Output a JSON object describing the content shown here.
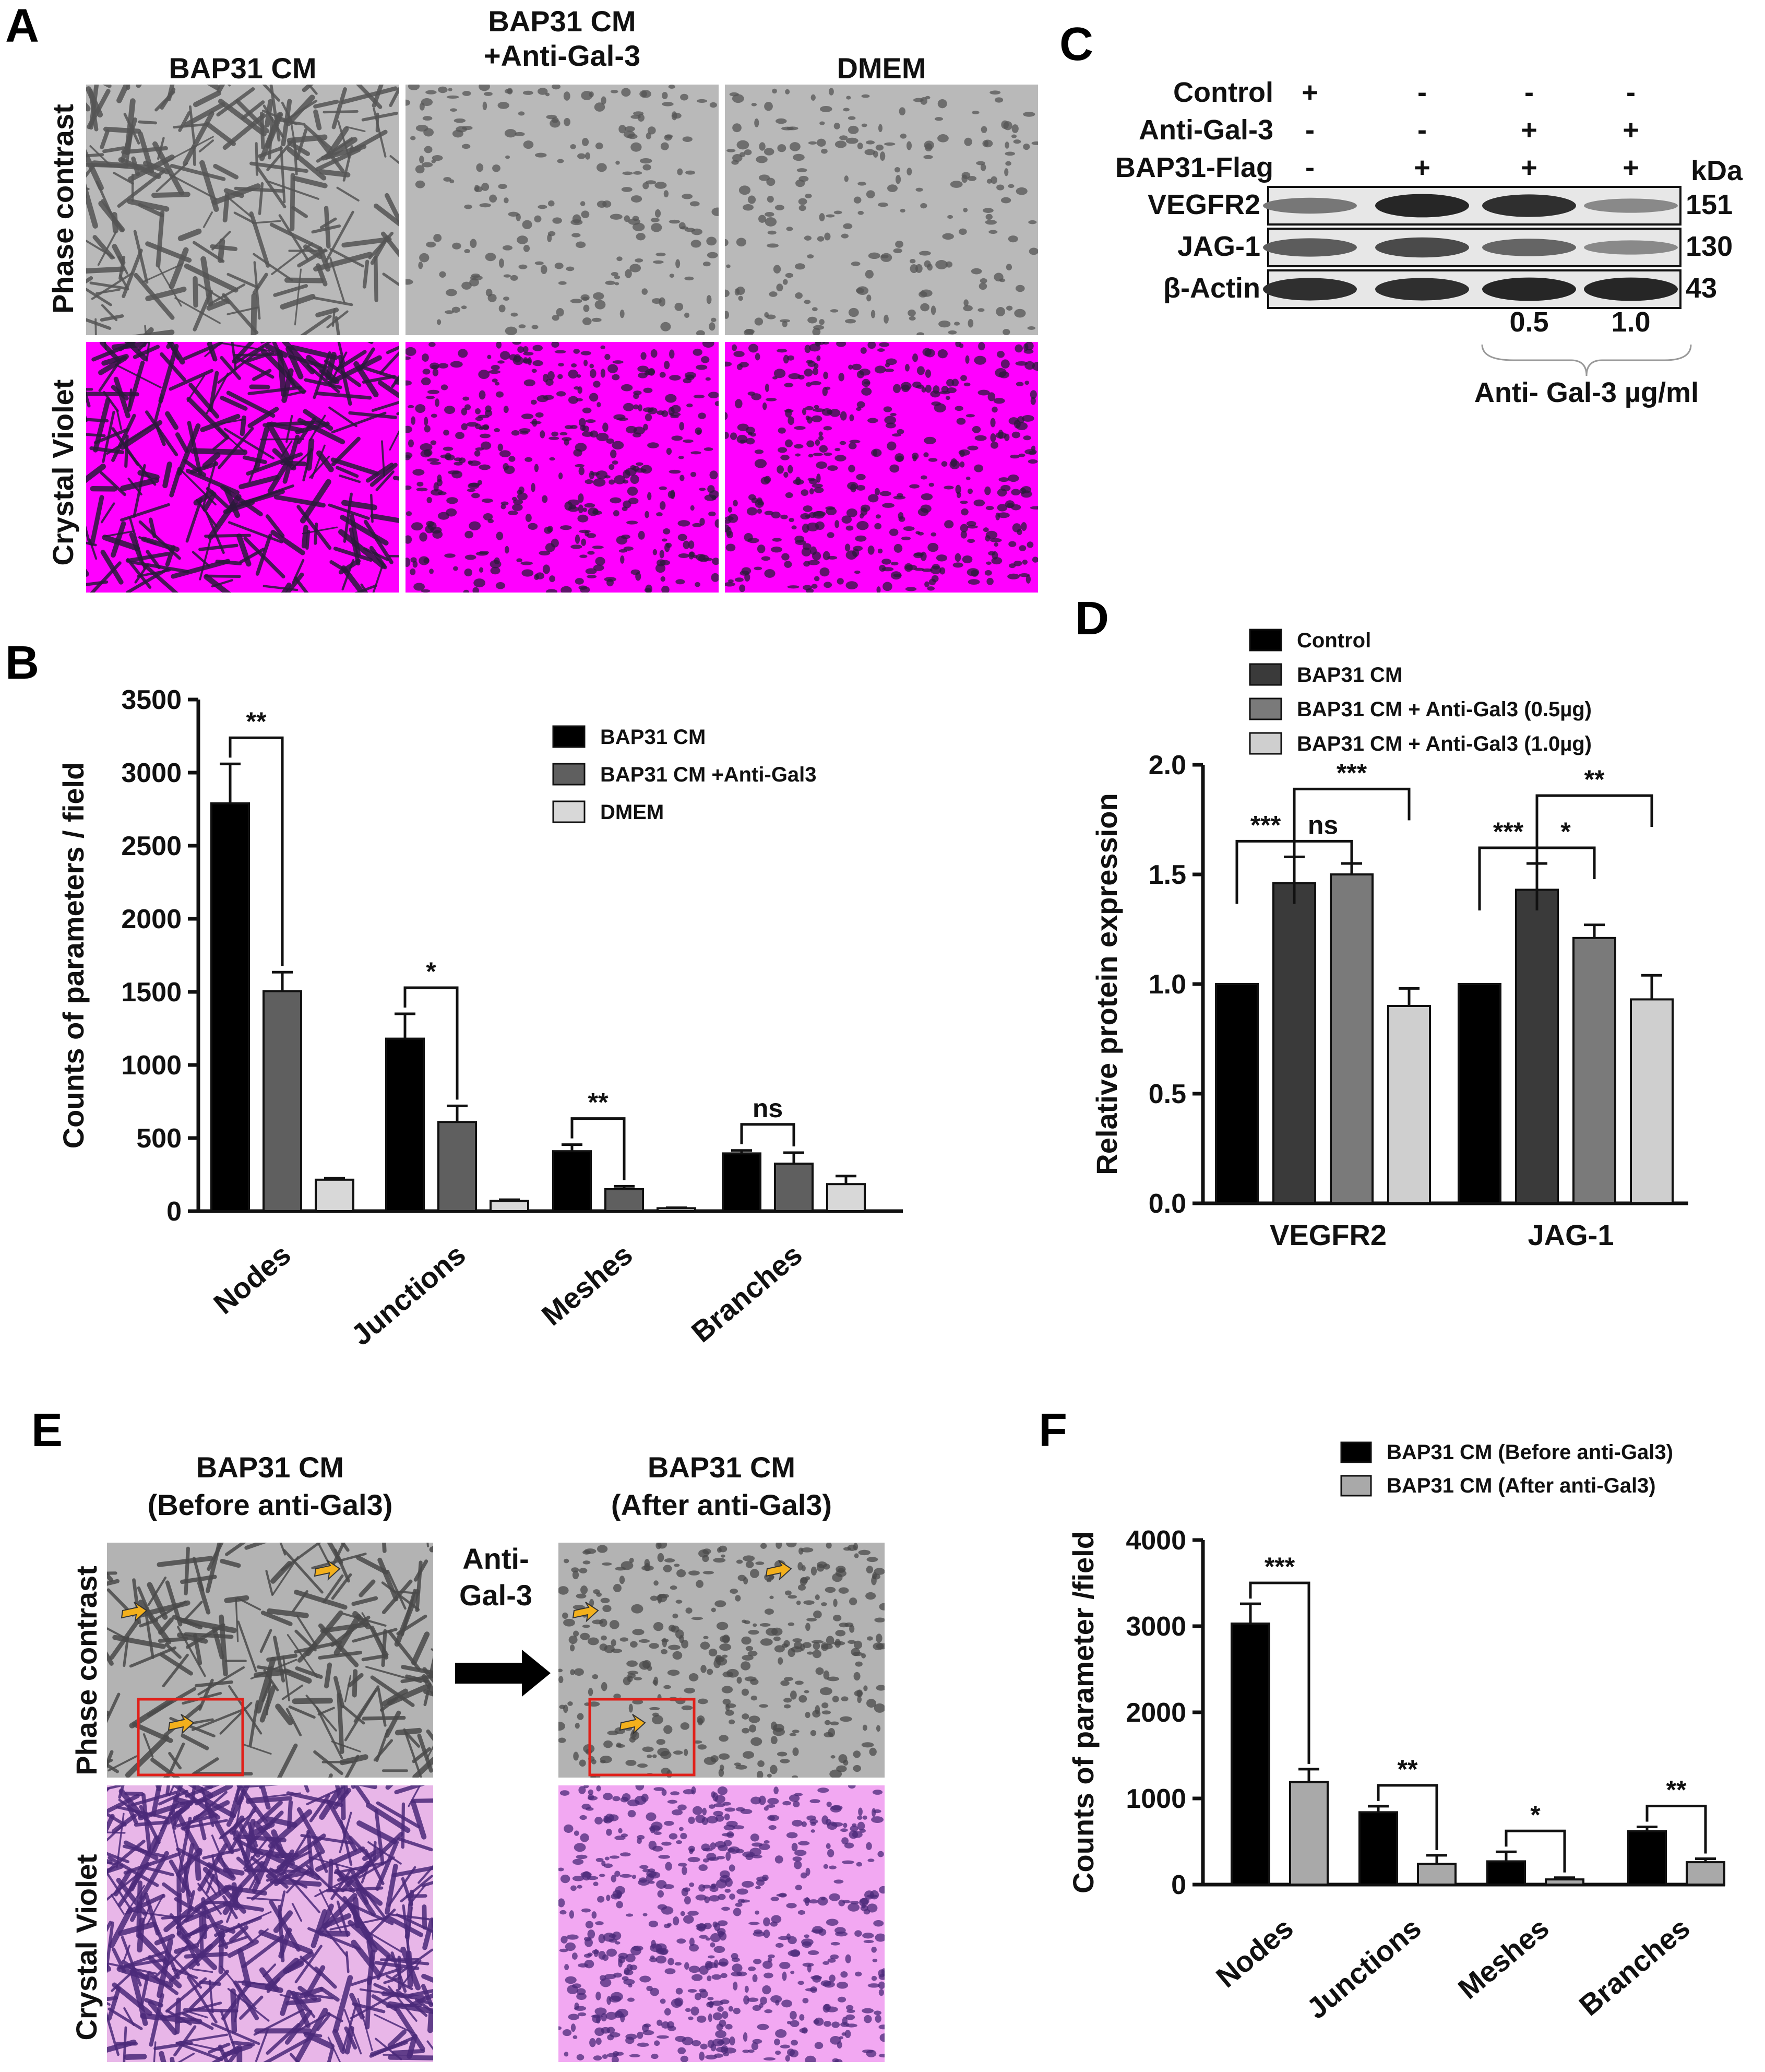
{
  "panels": {
    "A": "A",
    "B": "B",
    "C": "C",
    "D": "D",
    "E": "E",
    "F": "F"
  },
  "panel_a": {
    "column_headers": [
      "BAP31 CM",
      "BAP31 CM\n+Anti-Gal-3",
      "DMEM"
    ],
    "row_labels": [
      "Phase contrast",
      "Crystal Violet"
    ],
    "colors": {
      "phase": "#b9b9b9",
      "crystal": "#ff00ff",
      "network": "#2a1a3a"
    }
  },
  "panel_c": {
    "rows": [
      {
        "label": "Control",
        "marks": [
          "+",
          "-",
          "-",
          "-"
        ]
      },
      {
        "label": "Anti-Gal-3",
        "marks": [
          "-",
          "-",
          "+",
          "+"
        ]
      },
      {
        "label": "BAP31-Flag",
        "marks": [
          "-",
          "+",
          "+",
          "+"
        ]
      }
    ],
    "kda_label": "kDa",
    "bands": [
      {
        "label": "VEGFR2",
        "kda": "151",
        "intensity": [
          0.45,
          0.9,
          0.85,
          0.35
        ]
      },
      {
        "label": "JAG-1",
        "kda": "130",
        "intensity": [
          0.6,
          0.7,
          0.55,
          0.35
        ]
      },
      {
        "label": "β-Actin",
        "kda": "43",
        "intensity": [
          0.85,
          0.85,
          0.9,
          0.9
        ]
      }
    ],
    "doses": [
      "0.5",
      "1.0"
    ],
    "dose_caption": "Anti- Gal-3 µg/ml"
  },
  "panel_e": {
    "headers": [
      "BAP31 CM\n(Before anti-Gal3)",
      "BAP31 CM\n(After anti-Gal3)"
    ],
    "row_labels": [
      "Phase contrast",
      "Crystal Violet"
    ],
    "arrow_label": "Anti-\nGal-3"
  },
  "chart_data": [
    {
      "id": "B",
      "type": "bar",
      "ylabel": "Counts of parameters / field",
      "ylim": [
        0,
        3500
      ],
      "yticks": [
        0,
        500,
        1000,
        1500,
        2000,
        2500,
        3000,
        3500
      ],
      "categories": [
        "Nodes",
        "Junctions",
        "Meshes",
        "Branches"
      ],
      "series": [
        {
          "name": "BAP31 CM",
          "color": "#000000",
          "values": [
            2790,
            1180,
            410,
            395
          ],
          "errors": [
            270,
            170,
            45,
            20
          ]
        },
        {
          "name": "BAP31 CM +Anti-Gal3",
          "color": "#5f5f5f",
          "values": [
            1505,
            610,
            150,
            325
          ],
          "errors": [
            130,
            110,
            20,
            75
          ]
        },
        {
          "name": "DMEM",
          "color": "#d8d8d8",
          "values": [
            215,
            70,
            20,
            185
          ],
          "errors": [
            10,
            8,
            3,
            55
          ]
        }
      ],
      "significance": [
        {
          "category": 0,
          "label": "**"
        },
        {
          "category": 1,
          "label": "*"
        },
        {
          "category": 2,
          "label": "**"
        },
        {
          "category": 3,
          "label": "ns"
        }
      ]
    },
    {
      "id": "D",
      "type": "bar",
      "ylabel": "Relative  protein expression",
      "ylim": [
        0,
        2.0
      ],
      "yticks": [
        "0.0",
        "0.5",
        "1.0",
        "1.5",
        "2.0"
      ],
      "categories": [
        "VEGFR2",
        "JAG-1"
      ],
      "series": [
        {
          "name": "Control",
          "color": "#000000",
          "values": [
            1.0,
            1.0
          ],
          "errors": [
            0,
            0
          ]
        },
        {
          "name": "BAP31 CM",
          "color": "#3a3a3a",
          "values": [
            1.46,
            1.43
          ],
          "errors": [
            0.12,
            0.12
          ]
        },
        {
          "name": "BAP31 CM + Anti-Gal3 (0.5µg)",
          "color": "#7a7a7a",
          "values": [
            1.5,
            1.21
          ],
          "errors": [
            0.05,
            0.06
          ]
        },
        {
          "name": "BAP31 CM + Anti-Gal3 (1.0µg)",
          "color": "#cfcfcf",
          "values": [
            0.9,
            0.93
          ],
          "errors": [
            0.08,
            0.11
          ]
        }
      ],
      "significance": [
        {
          "category": 0,
          "from": 0,
          "to": 1,
          "label": "***"
        },
        {
          "category": 0,
          "from": 1,
          "to": 2,
          "label": "ns"
        },
        {
          "category": 0,
          "from": 1,
          "to": 3,
          "label": "***"
        },
        {
          "category": 1,
          "from": 0,
          "to": 1,
          "label": "***"
        },
        {
          "category": 1,
          "from": 1,
          "to": 2,
          "label": "*"
        },
        {
          "category": 1,
          "from": 1,
          "to": 3,
          "label": "**"
        }
      ]
    },
    {
      "id": "F",
      "type": "bar",
      "ylabel": "Counts of parameter /field",
      "ylim": [
        0,
        4000
      ],
      "yticks": [
        0,
        1000,
        2000,
        3000,
        4000
      ],
      "categories": [
        "Nodes",
        "Junctions",
        "Meshes",
        "Branches"
      ],
      "series": [
        {
          "name": "BAP31 CM (Before anti-Gal3)",
          "color": "#000000",
          "values": [
            3030,
            840,
            270,
            620
          ],
          "errors": [
            230,
            70,
            110,
            50
          ]
        },
        {
          "name": "BAP31 CM (After anti-Gal3)",
          "color": "#a9a9a9",
          "values": [
            1190,
            240,
            60,
            260
          ],
          "errors": [
            150,
            100,
            20,
            40
          ]
        }
      ],
      "significance": [
        {
          "category": 0,
          "label": "***"
        },
        {
          "category": 1,
          "label": "**"
        },
        {
          "category": 2,
          "label": "*"
        },
        {
          "category": 3,
          "label": "**"
        }
      ]
    }
  ]
}
